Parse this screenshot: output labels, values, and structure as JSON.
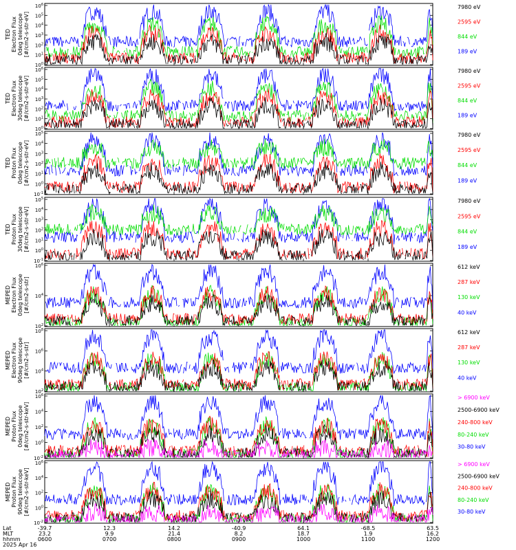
{
  "colors": {
    "blue": "#0000ff",
    "red": "#ff0000",
    "green": "#00dd00",
    "black": "#000000",
    "magenta": "#ff00ff"
  },
  "chart_data": [
    {
      "type": "line",
      "ylabel": [
        "TED",
        "Electron Flux",
        "0deg telescope",
        "[#/cm2-s-str-eV]"
      ],
      "ylog_range": [
        0,
        6
      ],
      "y_tick_labels": [
        "10^0",
        "10^1",
        "10^2",
        "10^3",
        "10^4",
        "10^5",
        "10^6"
      ],
      "legend": [
        {
          "label": "7980 eV",
          "color": "#000000"
        },
        {
          "label": "2595 eV",
          "color": "#ff0000"
        },
        {
          "label": "844 eV",
          "color": "#00dd00"
        },
        {
          "label": "189 eV",
          "color": "#0000ff"
        }
      ]
    },
    {
      "type": "line",
      "ylabel": [
        "TED",
        "Electron Flux",
        "30deg telescope",
        "[#/cm2-s-str-eV]"
      ],
      "ylog_range": [
        0,
        6
      ],
      "y_tick_labels": [
        "10^0",
        "10^1",
        "10^2",
        "10^3",
        "10^4",
        "10^5",
        "10^6"
      ],
      "legend": [
        {
          "label": "7980 eV",
          "color": "#000000"
        },
        {
          "label": "2595 eV",
          "color": "#ff0000"
        },
        {
          "label": "844 eV",
          "color": "#00dd00"
        },
        {
          "label": "189 eV",
          "color": "#0000ff"
        }
      ]
    },
    {
      "type": "line",
      "ylabel": [
        "TED",
        "Proton Flux",
        "0deg telescope",
        "[#/cm2-s-str-eV]"
      ],
      "ylog_range": [
        -1,
        5
      ],
      "y_tick_labels": [
        "10^-1",
        "10^0",
        "10^1",
        "10^2",
        "10^3",
        "10^4",
        "10^5"
      ],
      "legend": [
        {
          "label": "7980 eV",
          "color": "#000000"
        },
        {
          "label": "2595 eV",
          "color": "#ff0000"
        },
        {
          "label": "844 eV",
          "color": "#00dd00"
        },
        {
          "label": "189 eV",
          "color": "#0000ff"
        }
      ]
    },
    {
      "type": "line",
      "ylabel": [
        "TED",
        "Proton Flux",
        "30deg telescope",
        "[#/cm2-s-str-eV]"
      ],
      "ylog_range": [
        -1,
        5
      ],
      "y_tick_labels": [
        "10^-1",
        "10^0",
        "10^1",
        "10^2",
        "10^3",
        "10^4",
        "10^5"
      ],
      "legend": [
        {
          "label": "7980 eV",
          "color": "#000000"
        },
        {
          "label": "2595 eV",
          "color": "#ff0000"
        },
        {
          "label": "844 eV",
          "color": "#00dd00"
        },
        {
          "label": "189 eV",
          "color": "#0000ff"
        }
      ]
    },
    {
      "type": "line",
      "ylabel": [
        "MEPED",
        "Electron Flux",
        "0deg telescope",
        "[#/cm2-s-str]"
      ],
      "ylog_range": [
        1,
        6
      ],
      "y_tick_labels": [
        "10^2",
        "10^4",
        "10^6"
      ],
      "legend": [
        {
          "label": "612 keV",
          "color": "#000000"
        },
        {
          "label": "287 keV",
          "color": "#ff0000"
        },
        {
          "label": "130 keV",
          "color": "#00dd00"
        },
        {
          "label": "40 keV",
          "color": "#0000ff"
        }
      ]
    },
    {
      "type": "line",
      "ylabel": [
        "MEPED",
        "Electron Flux",
        "90deg telescope",
        "[#/cm2-s-str]"
      ],
      "ylog_range": [
        1,
        8
      ],
      "y_tick_labels": [
        "10^2",
        "10^4",
        "10^6",
        "10^8"
      ],
      "legend": [
        {
          "label": "612 keV",
          "color": "#000000"
        },
        {
          "label": "287 keV",
          "color": "#ff0000"
        },
        {
          "label": "130 keV",
          "color": "#00dd00"
        },
        {
          "label": "40 keV",
          "color": "#0000ff"
        }
      ]
    },
    {
      "type": "line",
      "ylabel": [
        "MEPED",
        "Proton Flux",
        "0deg telescope",
        "[#/cm2-s-str-keV]"
      ],
      "ylog_range": [
        -3,
        6
      ],
      "y_tick_labels": [
        "10^-2",
        "10^0",
        "10^2",
        "10^4",
        "10^6"
      ],
      "legend": [
        {
          "label": "> 6900 keV",
          "color": "#ff00ff"
        },
        {
          "label": "2500-6900 keV",
          "color": "#000000"
        },
        {
          "label": "240-800 keV",
          "color": "#ff0000"
        },
        {
          "label": "80-240 keV",
          "color": "#00dd00"
        },
        {
          "label": "30-80 keV",
          "color": "#0000ff"
        }
      ]
    },
    {
      "type": "line",
      "ylabel": [
        "MEPED",
        "Proton Flux",
        "90deg telescope",
        "[#/cm2-s-str-keV]"
      ],
      "ylog_range": [
        -3,
        6
      ],
      "y_tick_labels": [
        "10^-2",
        "10^0",
        "10^2",
        "10^4",
        "10^6"
      ],
      "legend": [
        {
          "label": "> 6900 keV",
          "color": "#ff00ff"
        },
        {
          "label": "2500-6900 keV",
          "color": "#000000"
        },
        {
          "label": "240-800 keV",
          "color": "#ff0000"
        },
        {
          "label": "80-240 keV",
          "color": "#00dd00"
        },
        {
          "label": "30-80 keV",
          "color": "#0000ff"
        }
      ]
    }
  ],
  "x_axis": {
    "row_labels": [
      "Lat",
      "MLT",
      "hhmm",
      "2025 Apr 16"
    ],
    "ticks": [
      {
        "lat": "-39.7",
        "mlt": "23.2",
        "hhmm": "0600"
      },
      {
        "lat": "12.3",
        "mlt": "9.9",
        "hhmm": "0700"
      },
      {
        "lat": "14.2",
        "mlt": "21.4",
        "hhmm": "0800"
      },
      {
        "lat": "-40.9",
        "mlt": "8.2",
        "hhmm": "0900"
      },
      {
        "lat": "64.1",
        "mlt": "18.7",
        "hhmm": "1000"
      },
      {
        "lat": "-68.5",
        "mlt": "1.9",
        "hhmm": "1100"
      },
      {
        "lat": "63.5",
        "mlt": "16.2",
        "hhmm": "1200"
      }
    ]
  }
}
